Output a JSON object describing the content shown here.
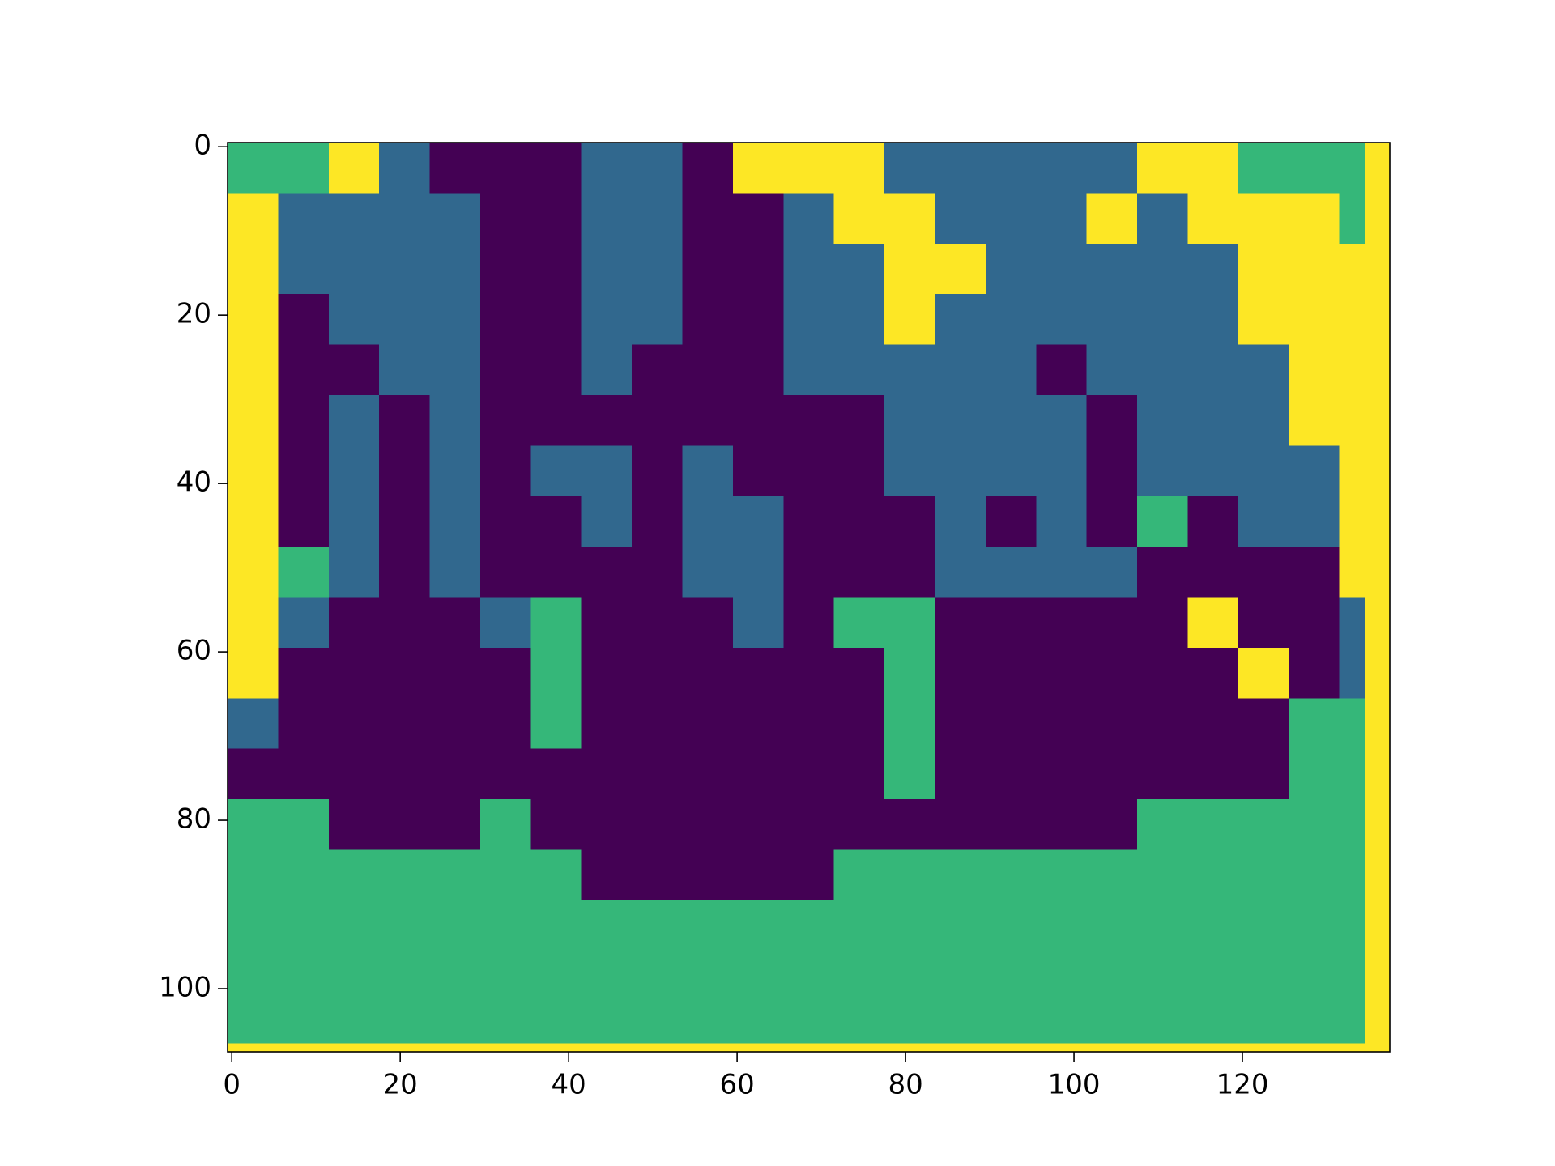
{
  "chart_data": {
    "type": "heatmap",
    "x_edges": [
      -0.5,
      5.5,
      11.5,
      17.5,
      23.5,
      29.5,
      35.5,
      41.5,
      47.5,
      53.5,
      59.5,
      65.5,
      71.5,
      77.5,
      83.5,
      89.5,
      95.5,
      101.5,
      107.5,
      113.5,
      119.5,
      125.5,
      131.5,
      134.5,
      137.5
    ],
    "y_edges": [
      -0.5,
      5.5,
      11.5,
      17.5,
      23.5,
      29.5,
      35.5,
      41.5,
      47.5,
      53.5,
      59.5,
      65.5,
      71.5,
      77.5,
      83.5,
      89.5,
      95.5,
      101.5,
      106.5,
      107.5
    ],
    "colors": [
      "#440154",
      "#31688e",
      "#35b779",
      "#fde725"
    ],
    "values": [
      [
        2,
        2,
        3,
        1,
        0,
        0,
        0,
        1,
        1,
        0,
        3,
        3,
        3,
        1,
        1,
        1,
        1,
        1,
        3,
        3,
        2,
        2,
        2,
        3
      ],
      [
        3,
        1,
        1,
        1,
        1,
        0,
        0,
        1,
        1,
        0,
        0,
        1,
        3,
        3,
        1,
        1,
        1,
        3,
        1,
        3,
        3,
        3,
        2,
        3
      ],
      [
        3,
        1,
        1,
        1,
        1,
        0,
        0,
        1,
        1,
        0,
        0,
        1,
        1,
        3,
        3,
        1,
        1,
        1,
        1,
        1,
        3,
        3,
        3,
        3
      ],
      [
        3,
        0,
        1,
        1,
        1,
        0,
        0,
        1,
        1,
        0,
        0,
        1,
        1,
        3,
        1,
        1,
        1,
        1,
        1,
        1,
        3,
        3,
        3,
        3
      ],
      [
        3,
        0,
        0,
        1,
        1,
        0,
        0,
        1,
        0,
        0,
        0,
        1,
        1,
        1,
        1,
        1,
        0,
        1,
        1,
        1,
        1,
        3,
        3,
        3
      ],
      [
        3,
        0,
        1,
        0,
        1,
        0,
        0,
        0,
        0,
        0,
        0,
        0,
        0,
        1,
        1,
        1,
        1,
        0,
        1,
        1,
        1,
        3,
        3,
        3
      ],
      [
        3,
        0,
        1,
        0,
        1,
        0,
        1,
        1,
        0,
        1,
        0,
        0,
        0,
        1,
        1,
        1,
        1,
        0,
        1,
        1,
        1,
        1,
        3,
        3
      ],
      [
        3,
        0,
        1,
        0,
        1,
        0,
        0,
        1,
        0,
        1,
        1,
        0,
        0,
        0,
        1,
        0,
        1,
        0,
        2,
        0,
        1,
        1,
        3,
        3
      ],
      [
        3,
        2,
        1,
        0,
        1,
        0,
        0,
        0,
        0,
        1,
        1,
        0,
        0,
        0,
        1,
        1,
        1,
        1,
        0,
        0,
        0,
        0,
        3,
        3
      ],
      [
        3,
        1,
        0,
        0,
        0,
        1,
        2,
        0,
        0,
        0,
        1,
        0,
        2,
        2,
        0,
        0,
        0,
        0,
        0,
        3,
        0,
        0,
        1,
        3
      ],
      [
        3,
        0,
        0,
        0,
        0,
        0,
        2,
        0,
        0,
        0,
        0,
        0,
        0,
        2,
        0,
        0,
        0,
        0,
        0,
        0,
        3,
        0,
        1,
        3
      ],
      [
        1,
        0,
        0,
        0,
        0,
        0,
        2,
        0,
        0,
        0,
        0,
        0,
        0,
        2,
        0,
        0,
        0,
        0,
        0,
        0,
        0,
        2,
        2,
        3
      ],
      [
        0,
        0,
        0,
        0,
        0,
        0,
        0,
        0,
        0,
        0,
        0,
        0,
        0,
        2,
        0,
        0,
        0,
        0,
        0,
        0,
        0,
        2,
        2,
        3
      ],
      [
        2,
        2,
        0,
        0,
        0,
        2,
        0,
        0,
        0,
        0,
        0,
        0,
        0,
        0,
        0,
        0,
        0,
        0,
        2,
        2,
        2,
        2,
        2,
        3
      ],
      [
        2,
        2,
        2,
        2,
        2,
        2,
        2,
        0,
        0,
        0,
        0,
        0,
        2,
        2,
        2,
        2,
        2,
        2,
        2,
        2,
        2,
        2,
        2,
        3
      ],
      [
        2,
        2,
        2,
        2,
        2,
        2,
        2,
        2,
        2,
        2,
        2,
        2,
        2,
        2,
        2,
        2,
        2,
        2,
        2,
        2,
        2,
        2,
        2,
        3
      ],
      [
        2,
        2,
        2,
        2,
        2,
        2,
        2,
        2,
        2,
        2,
        2,
        2,
        2,
        2,
        2,
        2,
        2,
        2,
        2,
        2,
        2,
        2,
        2,
        3
      ],
      [
        2,
        2,
        2,
        2,
        2,
        2,
        2,
        2,
        2,
        2,
        2,
        2,
        2,
        2,
        2,
        2,
        2,
        2,
        2,
        2,
        2,
        2,
        2,
        3
      ],
      [
        3,
        3,
        3,
        3,
        3,
        3,
        3,
        3,
        3,
        3,
        3,
        3,
        3,
        3,
        3,
        3,
        3,
        3,
        3,
        3,
        3,
        3,
        3,
        3
      ]
    ],
    "xlim": [
      -0.5,
      137.5
    ],
    "ylim": [
      107.5,
      -0.5
    ],
    "xticks": [
      0,
      20,
      40,
      60,
      80,
      100,
      120
    ],
    "yticks": [
      0,
      20,
      40,
      60,
      80,
      100
    ]
  }
}
